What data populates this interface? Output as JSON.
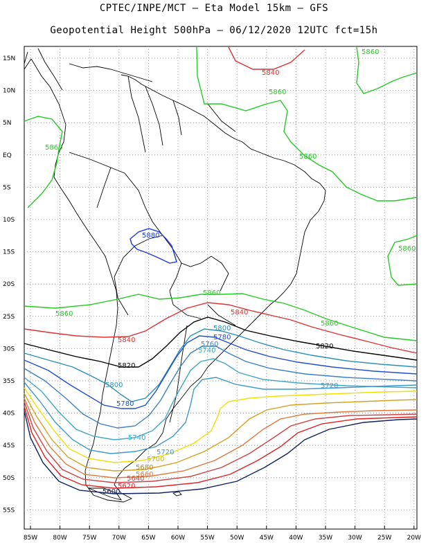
{
  "title_line1": "CPTEC/INPE/MCT –  Eta Model 15km – GFS",
  "title_line2": "Geopotential Height 500hPa – 06/12/2020 12UTC fct=15h",
  "lat_labels": [
    "15N",
    "10N",
    "5N",
    "EQ",
    "5S",
    "10S",
    "15S",
    "20S",
    "25S",
    "30S",
    "35S",
    "40S",
    "45S",
    "50S",
    "55S"
  ],
  "lon_labels": [
    "85W",
    "80W",
    "75W",
    "70W",
    "65W",
    "60W",
    "55W",
    "50W",
    "45W",
    "40W",
    "35W",
    "30W",
    "25W",
    "20W"
  ],
  "contour_colors": {
    "5880": "#1a3adf",
    "5860": "#22cc22",
    "5840": "#e03030",
    "5820": "#000000",
    "5800": "#2a8fb8",
    "5780": "#1f4fd0",
    "5760": "#3a80c8",
    "5740": "#3ea6c8",
    "5720": "#3a9ad0",
    "5700": "#f0e000",
    "5680": "#d8a020",
    "5660": "#e07838",
    "5640": "#d04040",
    "5620": "#e02020",
    "5600": "#102060"
  },
  "contour_labels": {
    "c5860_a": "5860",
    "c5860_b": "5860",
    "c5860_c": "5860",
    "c5860_d": "5860",
    "c5860_e": "5860",
    "c5860_f": "5860",
    "c5860_g": "5860",
    "c5840_a": "5840",
    "c5840_b": "5840",
    "c5840_c": "5840",
    "c5880": "5880",
    "c5820_a": "5820",
    "c5820_b": "5820",
    "c5800_a": "5800",
    "c5800_b": "5800",
    "c5780_a": "5780",
    "c5780_b": "5780",
    "c5760": "5760",
    "c5740_a": "5740",
    "c5740_b": "5740",
    "c5720_a": "5720",
    "c5720_b": "5720",
    "c5700": "5700",
    "c5680": "5680",
    "c5660": "5660",
    "c5640": "5640",
    "c5620": "5620",
    "c5600": "5600"
  }
}
